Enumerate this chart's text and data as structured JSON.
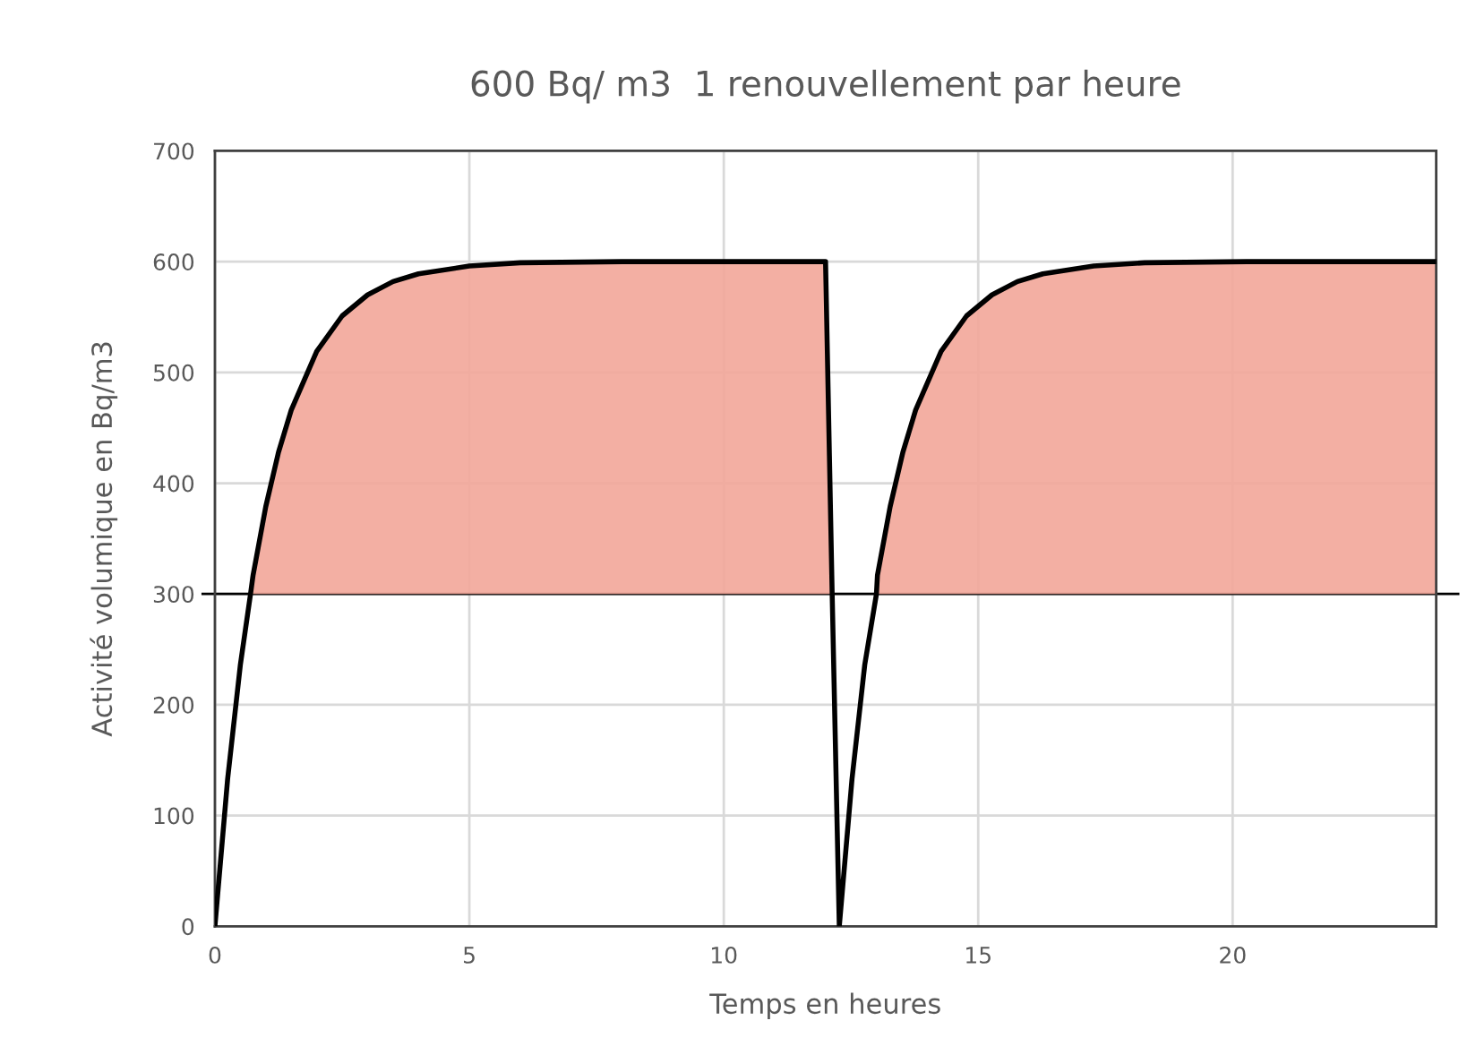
{
  "chart_data": {
    "type": "line",
    "title": "600 Bq/ m3  1 renouvellement par heure",
    "xlabel": "Temps en heures",
    "ylabel": "Activité volumique en Bq/m3",
    "series": [
      {
        "type": "area",
        "color": "#f2a699",
        "x": [
          0.7,
          0.75,
          1,
          1.25,
          1.5,
          2,
          2.5,
          3,
          3.5,
          4,
          5,
          6,
          8,
          10,
          12,
          12.13,
          13.0,
          13.02,
          13.27,
          13.52,
          13.77,
          14.27,
          14.77,
          15.27,
          15.77,
          16.27,
          17.27,
          18.27,
          20.27,
          22.27,
          24
        ],
        "values": [
          300,
          317,
          379,
          428,
          466,
          519,
          551,
          570,
          582,
          589,
          596,
          599,
          600,
          600,
          600,
          300,
          300,
          317,
          379,
          428,
          466,
          519,
          551,
          570,
          582,
          589,
          596,
          599,
          600,
          600,
          600
        ]
      },
      {
        "color": "#000000",
        "x": [
          0,
          0.25,
          0.5,
          0.7,
          0.75,
          1,
          1.25,
          1.5,
          2,
          2.5,
          3,
          3.5,
          4,
          5,
          6,
          8,
          10,
          12,
          12.13,
          12.27,
          12.52,
          12.77,
          13.0,
          13.02,
          13.27,
          13.52,
          13.77,
          14.27,
          14.77,
          15.27,
          15.77,
          16.27,
          17.27,
          18.27,
          20.27,
          22.27,
          24
        ],
        "values": [
          0,
          133,
          236,
          300,
          317,
          379,
          428,
          466,
          519,
          551,
          570,
          582,
          589,
          596,
          599,
          600,
          600,
          600,
          300,
          0,
          133,
          236,
          300,
          317,
          379,
          428,
          466,
          519,
          551,
          570,
          582,
          589,
          596,
          599,
          600,
          600,
          600
        ]
      }
    ],
    "ref_lines": [
      {
        "axis": "y",
        "value": 300,
        "color": "#000000"
      }
    ],
    "xlim": [
      0,
      24
    ],
    "xticks": [
      0,
      5,
      10,
      15,
      20
    ],
    "ylim": [
      0,
      700
    ],
    "yticks": [
      0,
      100,
      200,
      300,
      400,
      500,
      600,
      700
    ],
    "grid": true
  }
}
